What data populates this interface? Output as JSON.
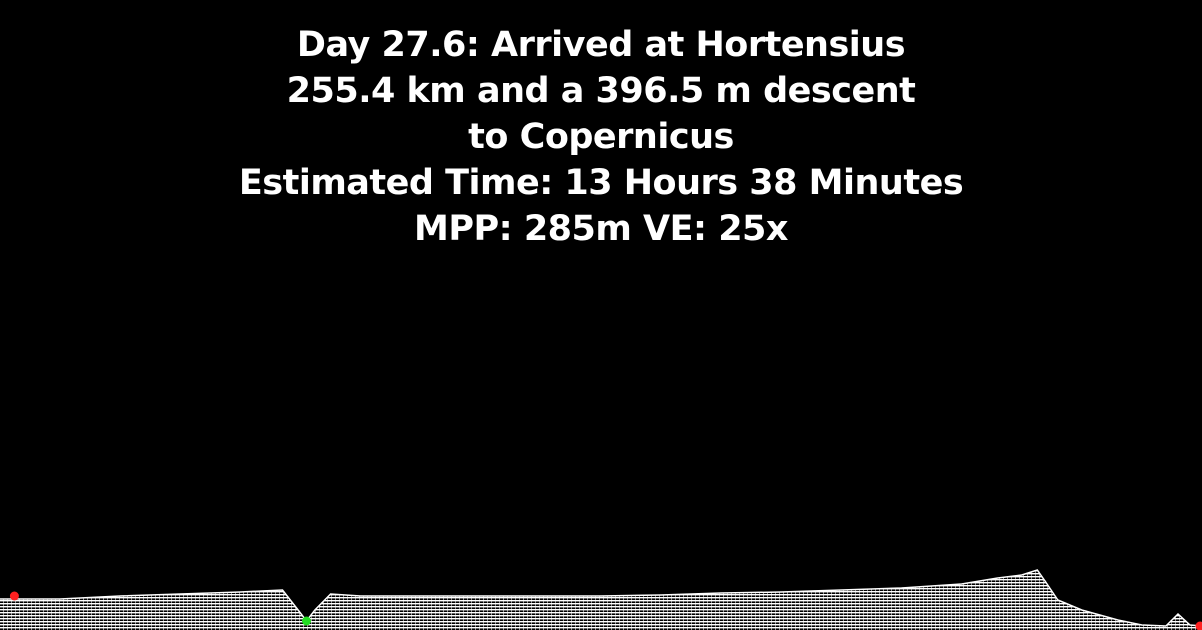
{
  "caption": {
    "line1": "Day 27.6: Arrived at Hortensius",
    "line2": "255.4 km and a 396.5 m descent",
    "line3": "to Copernicus",
    "line4": "Estimated Time: 13 Hours 38 Minutes",
    "line5": "MPP: 285m VE: 25x"
  },
  "chart_data": {
    "type": "area",
    "title": "",
    "xlabel": "",
    "ylabel": "",
    "x": [
      0,
      0.05,
      0.1,
      0.15,
      0.2,
      0.235,
      0.248,
      0.255,
      0.262,
      0.275,
      0.3,
      0.35,
      0.4,
      0.45,
      0.5,
      0.55,
      0.6,
      0.65,
      0.7,
      0.75,
      0.8,
      0.83,
      0.85,
      0.863,
      0.87,
      0.88,
      0.9,
      0.93,
      0.95,
      0.97,
      0.98,
      0.99,
      1.0
    ],
    "series": [
      {
        "values": [
          31,
          31,
          34,
          36,
          38,
          40,
          20,
          9,
          20,
          36,
          34,
          34,
          34,
          34,
          34,
          35,
          37,
          38,
          40,
          42,
          46,
          52,
          55,
          60,
          48,
          30,
          20,
          10,
          5,
          4,
          16,
          5,
          4
        ]
      }
    ],
    "markers": [
      {
        "role": "start",
        "x": 0.012,
        "y": 34,
        "color": "#ff2020"
      },
      {
        "role": "current",
        "x": 0.255,
        "y": 9,
        "color": "#22dd22"
      },
      {
        "role": "end",
        "x": 0.999,
        "y": 4,
        "color": "#ff2020"
      }
    ],
    "colors": {
      "terrain": "#ffffff",
      "background": "#000000"
    }
  }
}
